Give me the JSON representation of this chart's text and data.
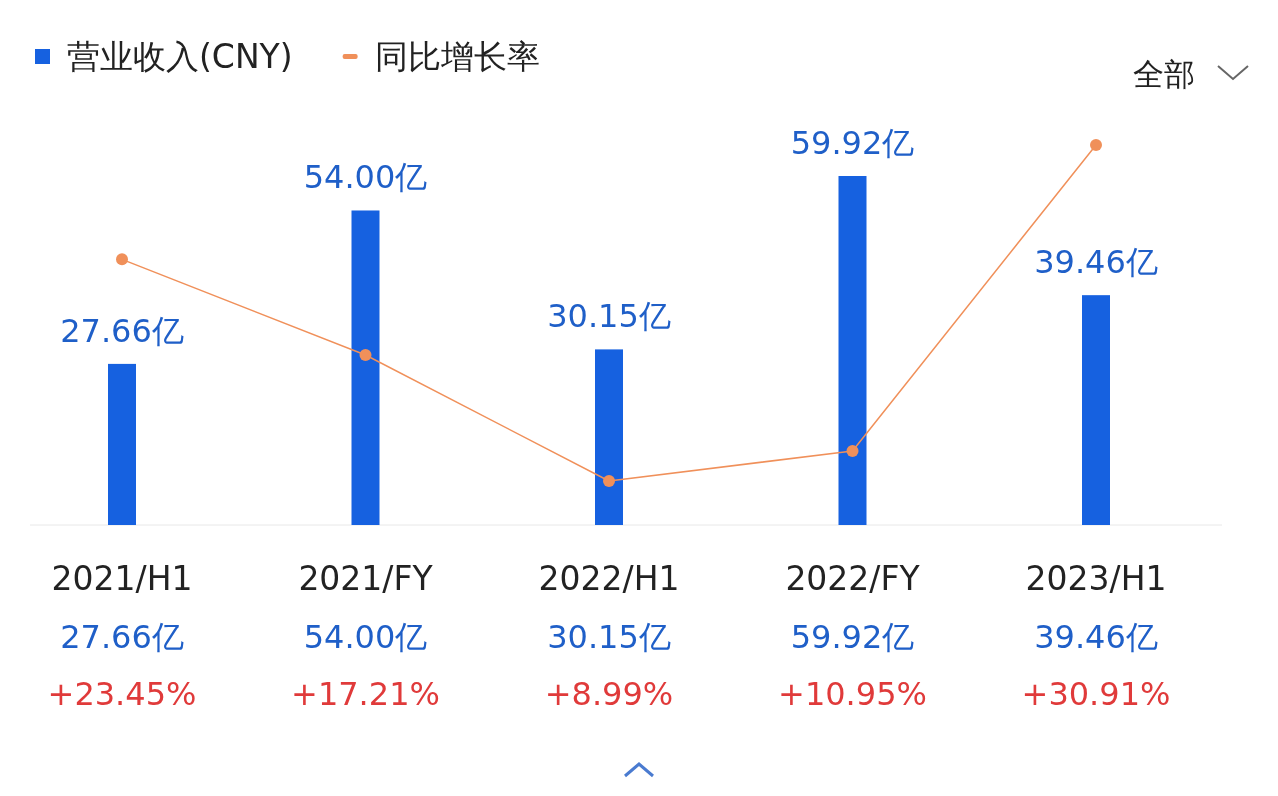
{
  "chart_data": {
    "type": "bar",
    "categories": [
      "2021/H1",
      "2021/FY",
      "2022/H1",
      "2022/FY",
      "2023/H1"
    ],
    "series": [
      {
        "name": "营业收入(CNY)",
        "color": "#1661e0",
        "values": [
          27.66,
          54.0,
          30.15,
          59.92,
          39.46
        ],
        "value_labels": [
          "27.66亿",
          "54.00亿",
          "30.15亿",
          "59.92亿",
          "39.46亿"
        ]
      },
      {
        "name": "同比增长率",
        "type": "line",
        "axis": "y2",
        "color": "#f0905a",
        "marker": "circle",
        "values": [
          23.45,
          17.21,
          8.99,
          10.95,
          30.91
        ],
        "value_labels": [
          "+23.45%",
          "+17.21%",
          "+8.99%",
          "+10.95%",
          "+30.91%"
        ]
      }
    ],
    "legend": "top left",
    "annotations": [
      "全部"
    ]
  }
}
